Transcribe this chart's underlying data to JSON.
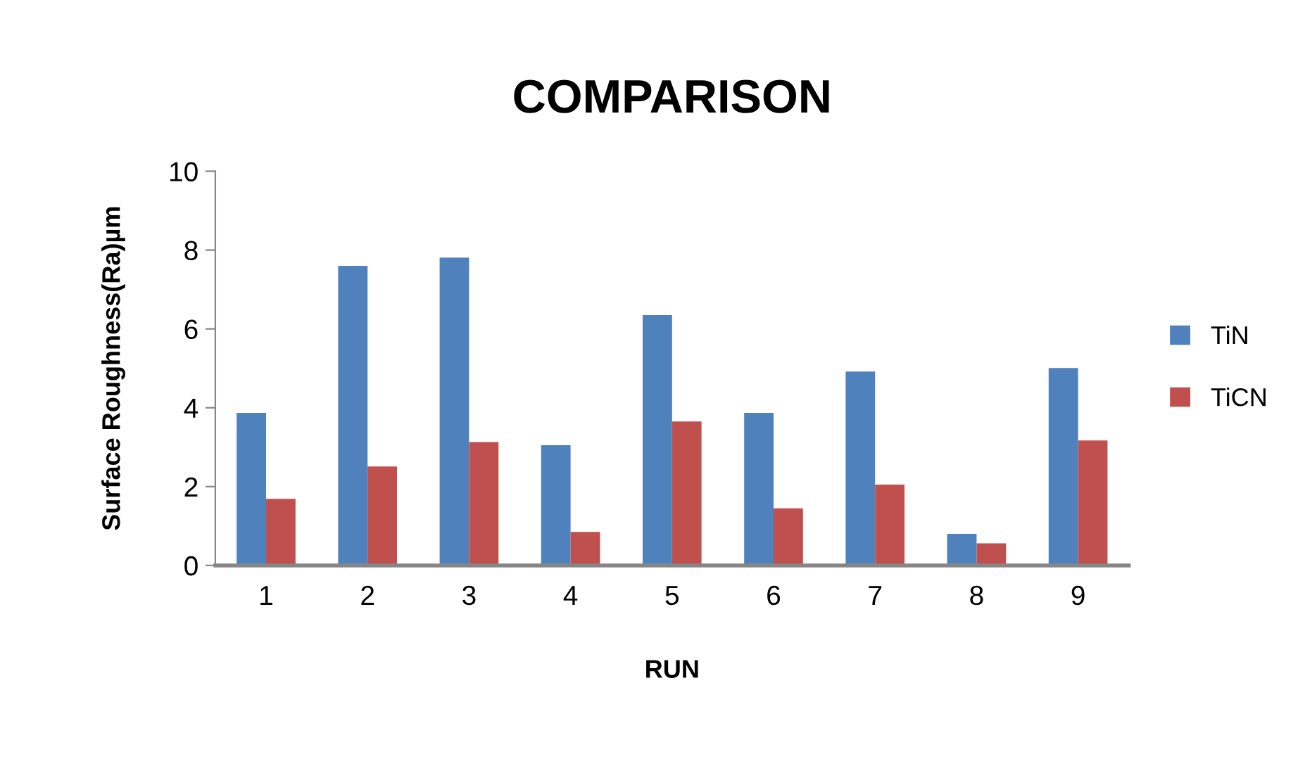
{
  "chart_data": {
    "type": "bar",
    "title": "COMPARISON",
    "xlabel": "RUN",
    "ylabel": "Surface Roughness(Ra)µm",
    "categories": [
      "1",
      "2",
      "3",
      "4",
      "5",
      "6",
      "7",
      "8",
      "9"
    ],
    "series": [
      {
        "name": "TiN",
        "color": "#4f81bd",
        "values": [
          3.87,
          7.6,
          7.81,
          3.05,
          6.35,
          3.87,
          4.92,
          0.8,
          5.01
        ]
      },
      {
        "name": "TiCN",
        "color": "#c0504d",
        "values": [
          1.69,
          2.51,
          3.13,
          0.85,
          3.65,
          1.45,
          2.05,
          0.56,
          3.17
        ]
      }
    ],
    "ylim": [
      0,
      10
    ],
    "yticks": [
      0,
      2,
      4,
      6,
      8,
      10
    ],
    "grid": false,
    "legend": "right"
  }
}
